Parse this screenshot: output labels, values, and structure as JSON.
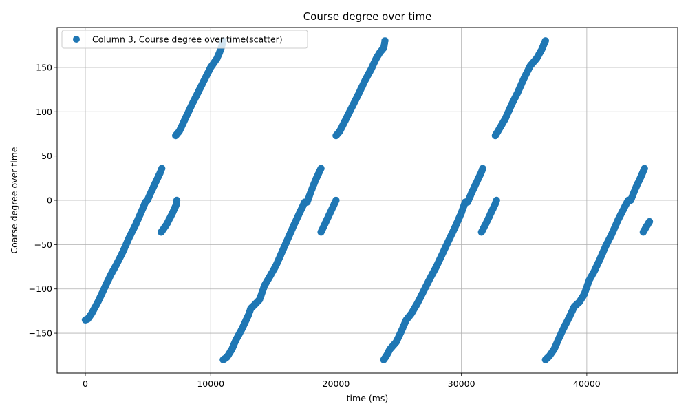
{
  "chart_data": {
    "type": "scatter",
    "title": "Course degree over time",
    "xlabel": "time (ms)",
    "ylabel": "Coarse degree over time",
    "xlim": [
      -2250,
      47250
    ],
    "ylim": [
      -195,
      195
    ],
    "xticks": [
      0,
      10000,
      20000,
      30000,
      40000
    ],
    "xtick_labels": [
      "0",
      "10000",
      "20000",
      "30000",
      "40000"
    ],
    "yticks": [
      -150,
      -100,
      -50,
      0,
      50,
      100,
      150
    ],
    "ytick_labels": [
      "−150",
      "−100",
      "−50",
      "0",
      "50",
      "100",
      "150"
    ],
    "grid": true,
    "legend": "top-left",
    "marker_color": "#1f77b4",
    "series": [
      {
        "name": "Column 3, Course degree over time(scatter)",
        "segments": [
          [
            [
              0,
              -135
            ],
            [
              200,
              -134
            ],
            [
              500,
              -128
            ],
            [
              1000,
              -115
            ],
            [
              1500,
              -100
            ],
            [
              2000,
              -85
            ],
            [
              2500,
              -72
            ],
            [
              3000,
              -58
            ],
            [
              3500,
              -42
            ],
            [
              4000,
              -28
            ],
            [
              4500,
              -12
            ],
            [
              4800,
              -2
            ],
            [
              4950,
              0
            ],
            [
              5200,
              8
            ],
            [
              5600,
              20
            ],
            [
              6000,
              32
            ],
            [
              6100,
              36
            ]
          ],
          [
            [
              6050,
              -36
            ],
            [
              6500,
              -27
            ],
            [
              7000,
              -13
            ],
            [
              7250,
              -5
            ],
            [
              7300,
              0
            ]
          ],
          [
            [
              7200,
              73
            ],
            [
              7500,
              78
            ],
            [
              8000,
              93
            ],
            [
              8500,
              108
            ],
            [
              9000,
              122
            ],
            [
              9500,
              136
            ],
            [
              10000,
              150
            ],
            [
              10500,
              160
            ],
            [
              10800,
              170
            ],
            [
              11000,
              180
            ]
          ],
          [
            [
              11000,
              -180
            ],
            [
              11300,
              -177
            ],
            [
              11700,
              -168
            ],
            [
              12000,
              -158
            ],
            [
              12500,
              -145
            ],
            [
              13000,
              -130
            ],
            [
              13200,
              -122
            ],
            [
              13500,
              -118
            ],
            [
              13900,
              -112
            ],
            [
              14300,
              -96
            ],
            [
              14800,
              -84
            ],
            [
              15200,
              -74
            ],
            [
              15700,
              -58
            ],
            [
              16200,
              -42
            ],
            [
              16700,
              -26
            ],
            [
              17200,
              -11
            ],
            [
              17500,
              -2
            ],
            [
              17700,
              -2
            ],
            [
              18000,
              10
            ],
            [
              18400,
              24
            ],
            [
              18800,
              36
            ]
          ],
          [
            [
              18800,
              -36
            ],
            [
              19200,
              -24
            ],
            [
              19600,
              -12
            ],
            [
              19900,
              -3
            ],
            [
              20000,
              0
            ]
          ],
          [
            [
              20000,
              73
            ],
            [
              20300,
              78
            ],
            [
              20800,
              92
            ],
            [
              21300,
              106
            ],
            [
              21800,
              120
            ],
            [
              22300,
              135
            ],
            [
              22800,
              148
            ],
            [
              23200,
              160
            ],
            [
              23500,
              167
            ],
            [
              23800,
              172
            ],
            [
              23900,
              180
            ]
          ],
          [
            [
              23800,
              -180
            ],
            [
              24000,
              -176
            ],
            [
              24300,
              -168
            ],
            [
              24800,
              -160
            ],
            [
              25200,
              -148
            ],
            [
              25600,
              -135
            ],
            [
              26000,
              -128
            ],
            [
              26500,
              -116
            ],
            [
              27000,
              -102
            ],
            [
              27500,
              -88
            ],
            [
              28000,
              -75
            ],
            [
              28500,
              -60
            ],
            [
              29000,
              -45
            ],
            [
              29500,
              -30
            ],
            [
              30000,
              -14
            ],
            [
              30300,
              -2
            ],
            [
              30500,
              -2
            ],
            [
              30800,
              8
            ],
            [
              31200,
              20
            ],
            [
              31600,
              32
            ],
            [
              31700,
              36
            ]
          ],
          [
            [
              31600,
              -36
            ],
            [
              32000,
              -25
            ],
            [
              32400,
              -13
            ],
            [
              32700,
              -4
            ],
            [
              32800,
              0
            ]
          ],
          [
            [
              32700,
              73
            ],
            [
              33000,
              80
            ],
            [
              33500,
              92
            ],
            [
              34000,
              108
            ],
            [
              34500,
              122
            ],
            [
              35000,
              138
            ],
            [
              35500,
              152
            ],
            [
              36000,
              160
            ],
            [
              36400,
              170
            ],
            [
              36700,
              180
            ]
          ],
          [
            [
              36700,
              -180
            ],
            [
              37000,
              -176
            ],
            [
              37400,
              -168
            ],
            [
              37800,
              -155
            ],
            [
              38200,
              -143
            ],
            [
              38600,
              -132
            ],
            [
              39000,
              -120
            ],
            [
              39400,
              -115
            ],
            [
              39800,
              -106
            ],
            [
              40200,
              -90
            ],
            [
              40600,
              -80
            ],
            [
              41000,
              -68
            ],
            [
              41500,
              -52
            ],
            [
              42000,
              -38
            ],
            [
              42500,
              -22
            ],
            [
              43000,
              -8
            ],
            [
              43300,
              0
            ],
            [
              43500,
              0
            ],
            [
              43900,
              14
            ],
            [
              44300,
              26
            ],
            [
              44600,
              36
            ]
          ],
          [
            [
              44500,
              -36
            ],
            [
              44700,
              -31
            ],
            [
              45000,
              -24
            ]
          ]
        ]
      }
    ]
  }
}
